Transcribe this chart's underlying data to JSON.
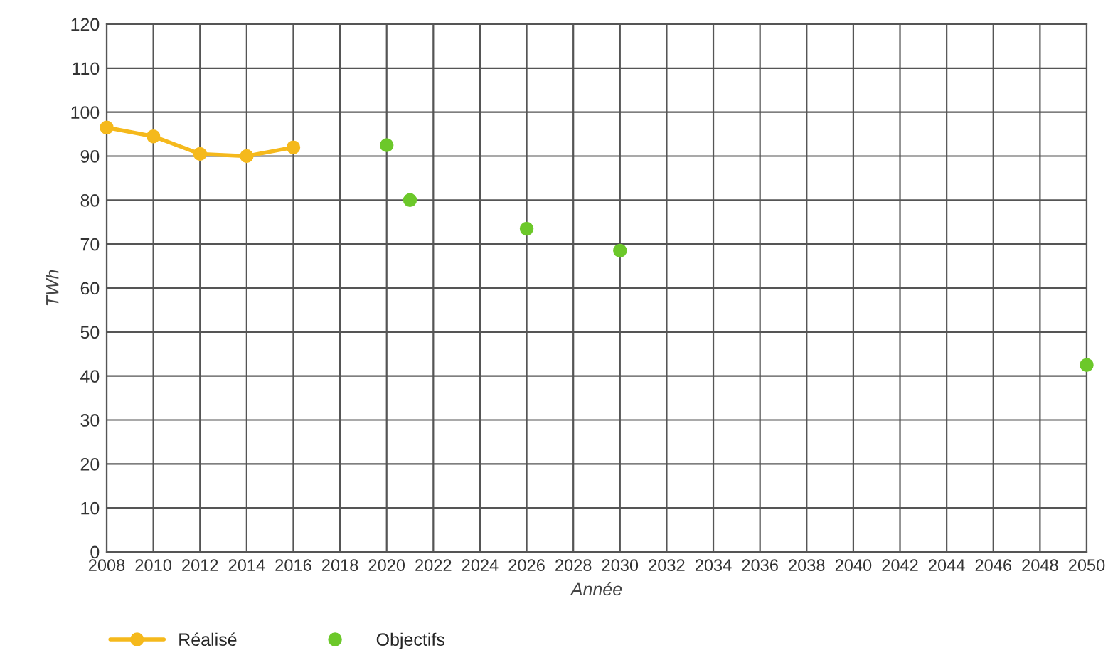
{
  "chart_data": {
    "type": "line",
    "xlabel": "Année",
    "ylabel": "TWh",
    "xlim": [
      2008,
      2050
    ],
    "xticks": [
      2008,
      2010,
      2012,
      2014,
      2016,
      2018,
      2020,
      2022,
      2024,
      2026,
      2028,
      2030,
      2032,
      2034,
      2036,
      2038,
      2040,
      2042,
      2044,
      2046,
      2048,
      2050
    ],
    "ylim": [
      0,
      120
    ],
    "yticks": [
      0,
      10,
      20,
      30,
      40,
      50,
      60,
      70,
      80,
      90,
      100,
      110,
      120
    ],
    "grid": true,
    "legend": "bottom left",
    "series": [
      {
        "name": "Réalisé",
        "type": "line",
        "color": "#f5b91c",
        "marker": "circle",
        "x": [
          2008,
          2010,
          2012,
          2014,
          2016
        ],
        "values": [
          96.5,
          94.5,
          90.5,
          90,
          92
        ]
      },
      {
        "name": "Objectifs",
        "type": "scatter",
        "color": "#6cc82a",
        "marker": "circle",
        "x": [
          2020,
          2021,
          2026,
          2030,
          2050
        ],
        "values": [
          92.5,
          80,
          73.5,
          68.5,
          42.5
        ]
      }
    ]
  }
}
